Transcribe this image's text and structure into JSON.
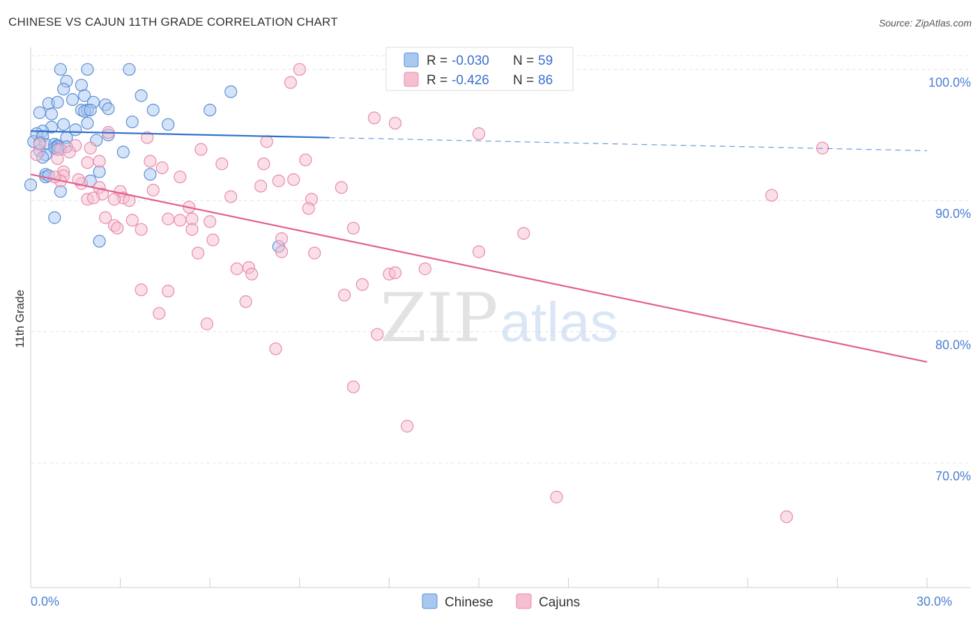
{
  "header": {
    "title": "CHINESE VS CAJUN 11TH GRADE CORRELATION CHART",
    "source": "Source: ZipAtlas.com"
  },
  "watermark": {
    "zip": "ZIP",
    "atlas": "atlas"
  },
  "colors": {
    "chinese_fill": "#a9c8f0",
    "chinese_stroke": "#5b8fd6",
    "chinese_line": "#2f6fcc",
    "cajun_fill": "#f6bfd1",
    "cajun_stroke": "#e98aaa",
    "cajun_line": "#e0608f",
    "tick_label": "#4a7fd0",
    "grid": "#e4e4e4"
  },
  "legend": {
    "rows": [
      {
        "r_label": "R =",
        "r_value": "-0.030",
        "n_label": "N =",
        "n_value": "59"
      },
      {
        "r_label": "R =",
        "r_value": "-0.426",
        "n_label": "N =",
        "n_value": "86"
      }
    ]
  },
  "chart_data": {
    "type": "scatter",
    "ylabel": "11th Grade",
    "xlim": [
      0,
      30
    ],
    "ylim": [
      60.5,
      102
    ],
    "x_tick_labels": [
      "0.0%",
      "30.0%"
    ],
    "y_ticks": [
      {
        "value": 100,
        "label": "100.0%"
      },
      {
        "value": 90,
        "label": "90.0%"
      },
      {
        "value": 80,
        "label": "80.0%"
      },
      {
        "value": 70,
        "label": "70.0%"
      }
    ],
    "series": [
      {
        "name": "Chinese",
        "trend": {
          "x0": 0,
          "y0": 95.3,
          "x1": 10.0,
          "y1": 94.8,
          "dash_x1": 30,
          "dash_y1": 93.8
        },
        "points": [
          [
            1.0,
            100.0
          ],
          [
            1.9,
            100.0
          ],
          [
            3.3,
            100.0
          ],
          [
            1.2,
            99.1
          ],
          [
            1.7,
            98.8
          ],
          [
            1.1,
            98.5
          ],
          [
            1.8,
            98.0
          ],
          [
            3.7,
            98.0
          ],
          [
            6.7,
            98.3
          ],
          [
            1.4,
            97.7
          ],
          [
            2.1,
            97.5
          ],
          [
            0.6,
            97.4
          ],
          [
            0.9,
            97.5
          ],
          [
            2.5,
            97.3
          ],
          [
            1.7,
            96.9
          ],
          [
            1.9,
            96.9
          ],
          [
            1.8,
            96.8
          ],
          [
            2.0,
            96.9
          ],
          [
            4.1,
            96.9
          ],
          [
            6.0,
            96.9
          ],
          [
            0.3,
            96.7
          ],
          [
            0.7,
            96.6
          ],
          [
            2.6,
            97.0
          ],
          [
            3.4,
            96.0
          ],
          [
            1.1,
            95.8
          ],
          [
            1.9,
            95.9
          ],
          [
            4.6,
            95.8
          ],
          [
            0.7,
            95.6
          ],
          [
            1.5,
            95.4
          ],
          [
            0.4,
            95.3
          ],
          [
            0.2,
            95.1
          ],
          [
            2.6,
            95.0
          ],
          [
            0.4,
            94.9
          ],
          [
            1.2,
            94.8
          ],
          [
            0.1,
            94.5
          ],
          [
            0.5,
            94.3
          ],
          [
            0.8,
            94.3
          ],
          [
            0.9,
            94.2
          ],
          [
            2.2,
            94.6
          ],
          [
            0.8,
            94.0
          ],
          [
            0.9,
            94.1
          ],
          [
            0.3,
            93.8
          ],
          [
            0.5,
            93.5
          ],
          [
            0.4,
            93.3
          ],
          [
            3.1,
            93.7
          ],
          [
            0.5,
            92.0
          ],
          [
            2.3,
            92.2
          ],
          [
            4.0,
            92.0
          ],
          [
            0.0,
            91.2
          ],
          [
            1.0,
            90.7
          ],
          [
            2.0,
            91.5
          ],
          [
            0.5,
            91.8
          ],
          [
            0.8,
            88.7
          ],
          [
            2.3,
            86.9
          ],
          [
            8.3,
            86.5
          ],
          [
            0.6,
            91.9
          ],
          [
            1.2,
            94.1
          ],
          [
            0.3,
            94.4
          ],
          [
            0.9,
            93.9
          ]
        ]
      },
      {
        "name": "Cajuns",
        "trend": {
          "x0": 0,
          "y0": 92.0,
          "x1": 30,
          "y1": 77.7
        },
        "points": [
          [
            9.0,
            100.0
          ],
          [
            8.7,
            99.0
          ],
          [
            11.5,
            96.3
          ],
          [
            12.2,
            95.9
          ],
          [
            15.0,
            95.1
          ],
          [
            26.5,
            94.0
          ],
          [
            2.6,
            95.2
          ],
          [
            3.9,
            94.8
          ],
          [
            1.5,
            94.2
          ],
          [
            2.0,
            94.0
          ],
          [
            5.7,
            93.9
          ],
          [
            7.9,
            94.5
          ],
          [
            1.0,
            93.9
          ],
          [
            1.3,
            93.7
          ],
          [
            0.9,
            93.2
          ],
          [
            2.3,
            93.0
          ],
          [
            4.0,
            93.0
          ],
          [
            1.9,
            92.9
          ],
          [
            6.4,
            92.8
          ],
          [
            7.8,
            92.8
          ],
          [
            9.2,
            93.1
          ],
          [
            4.4,
            92.5
          ],
          [
            1.1,
            92.2
          ],
          [
            1.1,
            91.9
          ],
          [
            5.0,
            91.8
          ],
          [
            8.3,
            91.5
          ],
          [
            8.8,
            91.6
          ],
          [
            1.0,
            91.5
          ],
          [
            1.7,
            91.3
          ],
          [
            2.3,
            91.0
          ],
          [
            4.1,
            90.8
          ],
          [
            7.7,
            91.1
          ],
          [
            10.4,
            91.0
          ],
          [
            3.0,
            90.7
          ],
          [
            2.4,
            90.5
          ],
          [
            3.1,
            90.2
          ],
          [
            3.3,
            90.0
          ],
          [
            6.7,
            90.3
          ],
          [
            9.4,
            90.1
          ],
          [
            24.8,
            90.4
          ],
          [
            1.9,
            90.1
          ],
          [
            2.1,
            90.2
          ],
          [
            2.8,
            90.1
          ],
          [
            5.3,
            89.5
          ],
          [
            9.3,
            89.4
          ],
          [
            2.5,
            88.7
          ],
          [
            3.4,
            88.5
          ],
          [
            4.6,
            88.6
          ],
          [
            5.0,
            88.5
          ],
          [
            5.4,
            88.6
          ],
          [
            6.0,
            88.4
          ],
          [
            2.8,
            88.1
          ],
          [
            2.9,
            87.9
          ],
          [
            3.7,
            87.8
          ],
          [
            5.4,
            87.8
          ],
          [
            10.8,
            87.9
          ],
          [
            16.5,
            87.5
          ],
          [
            6.1,
            87.0
          ],
          [
            8.4,
            87.1
          ],
          [
            5.6,
            86.0
          ],
          [
            8.4,
            86.1
          ],
          [
            9.5,
            86.0
          ],
          [
            15.0,
            86.1
          ],
          [
            6.9,
            84.8
          ],
          [
            7.3,
            84.9
          ],
          [
            7.4,
            84.4
          ],
          [
            12.0,
            84.4
          ],
          [
            12.2,
            84.5
          ],
          [
            13.2,
            84.8
          ],
          [
            11.1,
            83.6
          ],
          [
            3.7,
            83.2
          ],
          [
            4.6,
            83.1
          ],
          [
            10.5,
            82.8
          ],
          [
            7.2,
            82.3
          ],
          [
            4.3,
            81.4
          ],
          [
            5.9,
            80.6
          ],
          [
            11.6,
            79.8
          ],
          [
            8.2,
            78.7
          ],
          [
            10.8,
            75.8
          ],
          [
            12.6,
            72.8
          ],
          [
            17.6,
            67.4
          ],
          [
            25.3,
            65.9
          ],
          [
            0.8,
            91.8
          ],
          [
            0.2,
            93.5
          ],
          [
            0.3,
            94.3
          ],
          [
            1.6,
            91.6
          ]
        ]
      }
    ]
  }
}
